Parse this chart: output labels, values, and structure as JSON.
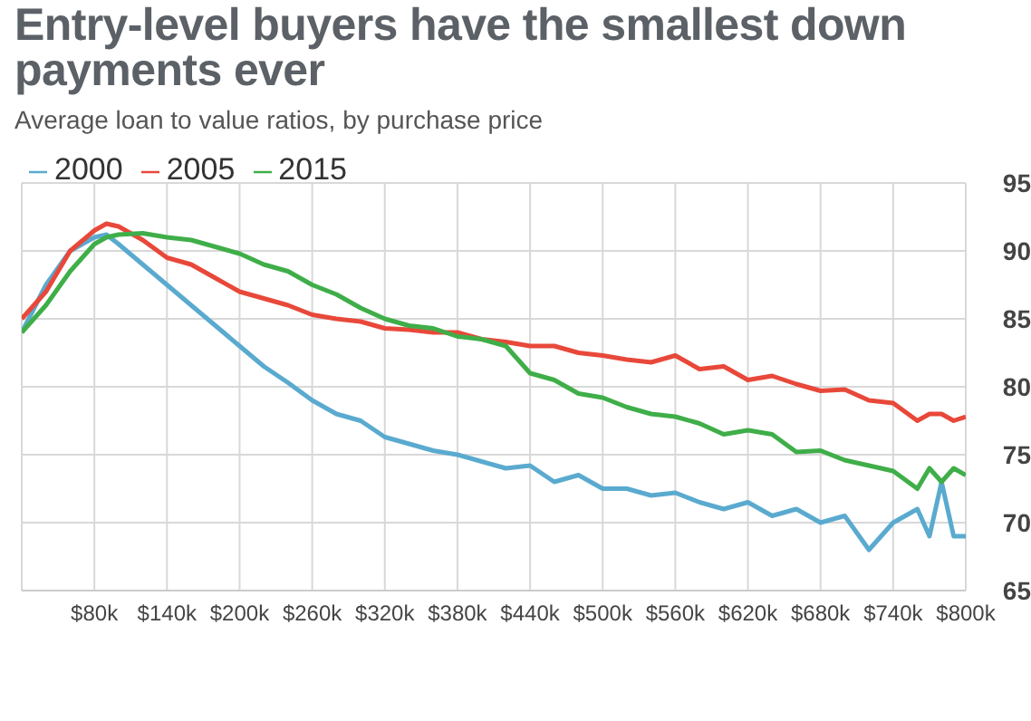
{
  "chart_data": {
    "type": "line",
    "title": "Entry-level buyers have the smallest down payments ever",
    "subtitle": "Average loan to value ratios, by purchase price",
    "x": [
      20000,
      40000,
      60000,
      80000,
      90000,
      100000,
      120000,
      140000,
      160000,
      180000,
      200000,
      220000,
      240000,
      260000,
      280000,
      300000,
      320000,
      340000,
      360000,
      380000,
      400000,
      420000,
      440000,
      460000,
      480000,
      500000,
      520000,
      540000,
      560000,
      580000,
      600000,
      620000,
      640000,
      660000,
      680000,
      700000,
      720000,
      740000,
      760000,
      770000,
      780000,
      790000,
      800000
    ],
    "series": [
      {
        "name": "2000",
        "color": "#5aaacf",
        "values": [
          84,
          87.5,
          90,
          91,
          91.2,
          90.5,
          89,
          87.5,
          86,
          84.5,
          83,
          81.5,
          80.3,
          79,
          78,
          77.5,
          76.3,
          75.8,
          75.3,
          75,
          74.5,
          74,
          74.2,
          73,
          73.5,
          72.5,
          72.5,
          72,
          72.2,
          71.5,
          71,
          71.5,
          70.5,
          71,
          70,
          70.5,
          68,
          70,
          71,
          69,
          73,
          69,
          69
        ]
      },
      {
        "name": "2005",
        "color": "#e8483a",
        "values": [
          85,
          87,
          90,
          91.5,
          92,
          91.8,
          90.8,
          89.5,
          89,
          88,
          87,
          86.5,
          86,
          85.3,
          85,
          84.8,
          84.3,
          84.2,
          84,
          84,
          83.5,
          83.3,
          83,
          83,
          82.5,
          82.3,
          82,
          81.8,
          82.3,
          81.3,
          81.5,
          80.5,
          80.8,
          80.2,
          79.7,
          79.8,
          79,
          78.8,
          77.5,
          78,
          78,
          77.5,
          77.8
        ]
      },
      {
        "name": "2015",
        "color": "#3fae49",
        "values": [
          84,
          86,
          88.5,
          90.5,
          91,
          91.2,
          91.3,
          91,
          90.8,
          90.3,
          89.8,
          89,
          88.5,
          87.5,
          86.8,
          85.8,
          85,
          84.5,
          84.3,
          83.7,
          83.5,
          83,
          81,
          80.5,
          79.5,
          79.2,
          78.5,
          78,
          77.8,
          77.3,
          76.5,
          76.8,
          76.5,
          75.2,
          75.3,
          74.6,
          74.2,
          73.8,
          72.5,
          74,
          73,
          74,
          73.5
        ]
      }
    ],
    "xlim": [
      20000,
      800000
    ],
    "xticks": [
      {
        "value": 80000,
        "label": "$80k"
      },
      {
        "value": 140000,
        "label": "$140k"
      },
      {
        "value": 200000,
        "label": "$200k"
      },
      {
        "value": 260000,
        "label": "$260k"
      },
      {
        "value": 320000,
        "label": "$320k"
      },
      {
        "value": 380000,
        "label": "$380k"
      },
      {
        "value": 440000,
        "label": "$440k"
      },
      {
        "value": 500000,
        "label": "$500k"
      },
      {
        "value": 560000,
        "label": "$560k"
      },
      {
        "value": 620000,
        "label": "$620k"
      },
      {
        "value": 680000,
        "label": "$680k"
      },
      {
        "value": 740000,
        "label": "$740k"
      },
      {
        "value": 800000,
        "label": "$800k"
      }
    ],
    "ylim": [
      65,
      95
    ],
    "yticks": [
      65,
      70,
      75,
      80,
      85,
      90,
      95
    ],
    "grid": true,
    "legend": "top left",
    "marker": "none",
    "line_style": "solid"
  }
}
